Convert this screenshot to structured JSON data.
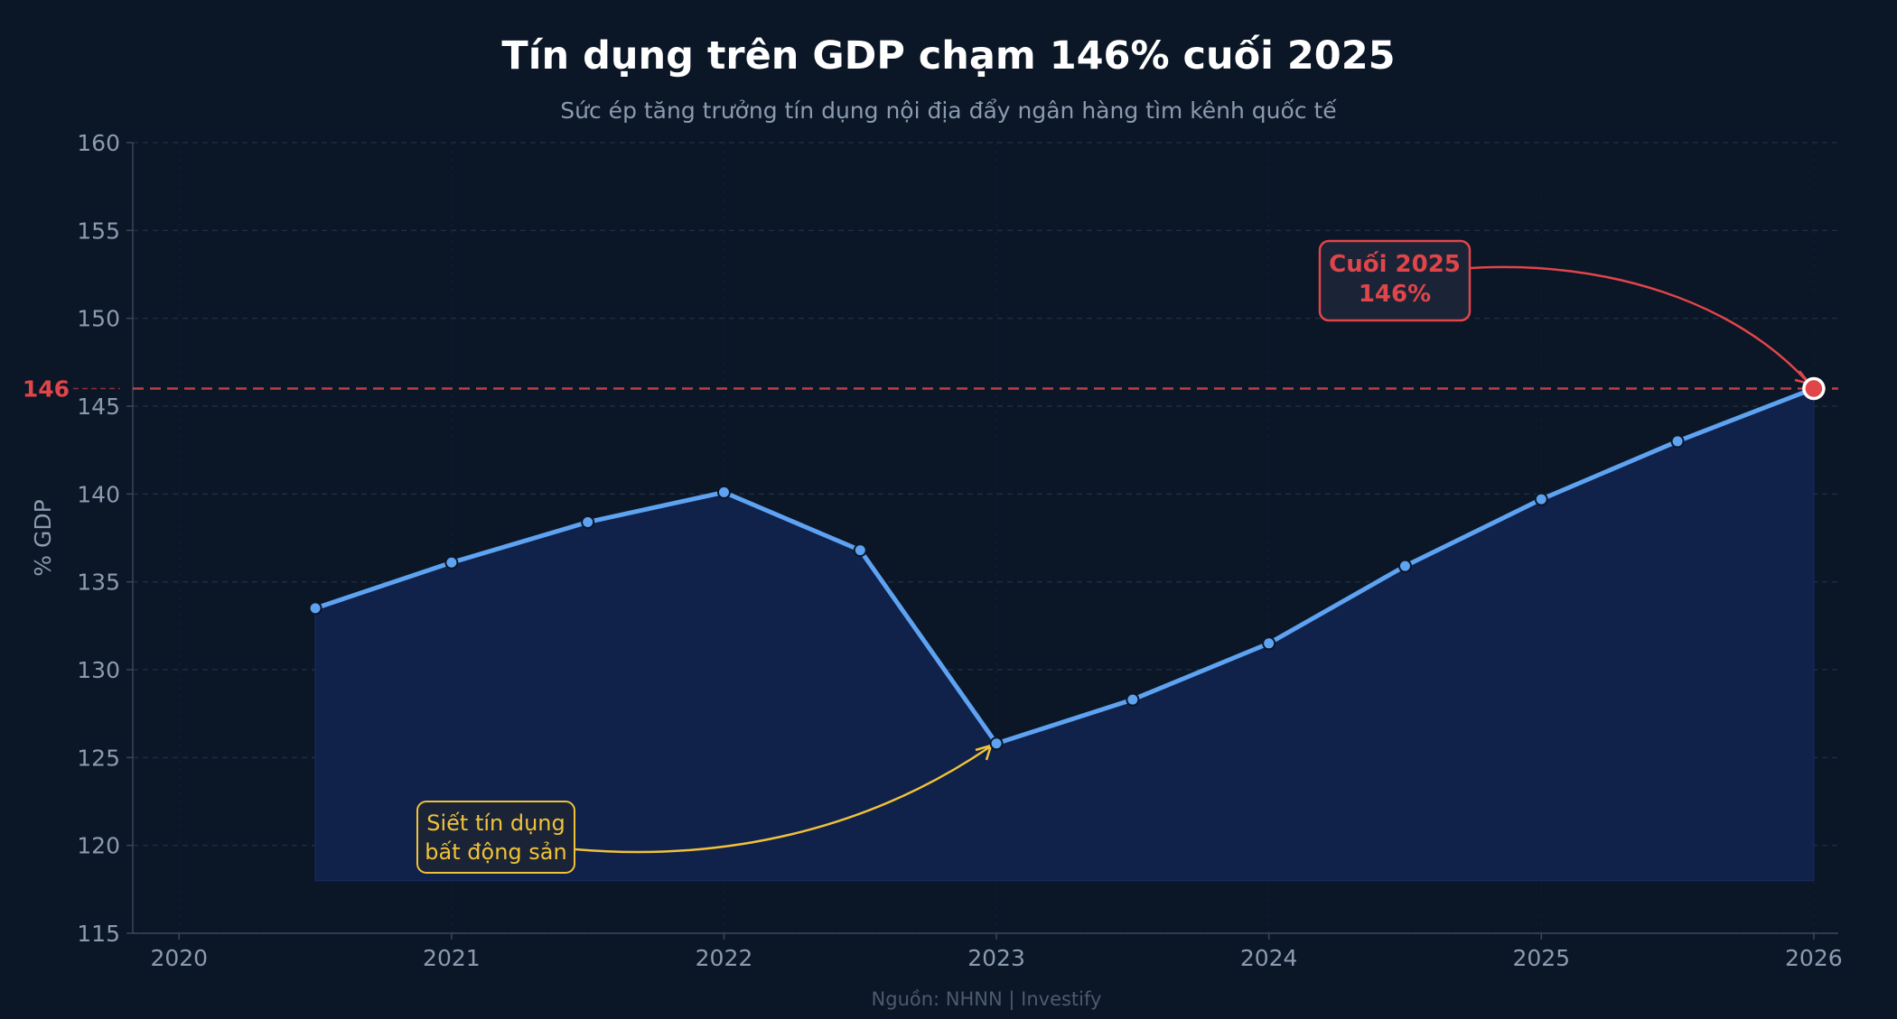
{
  "chart_data": {
    "type": "area",
    "title": "Tín dụng trên GDP chạm 146% cuối 2025",
    "subtitle": "Sức ép tăng trưởng tín dụng nội địa đẩy ngân hàng tìm kênh quốc tế",
    "xlabel": "",
    "ylabel": "% GDP",
    "source": "Nguồn: NHNN | Investify",
    "xlim": [
      2019.83,
      2026.09
    ],
    "ylim": [
      115,
      160
    ],
    "fill_baseline": 118,
    "grid": true,
    "x_ticks": [
      "2020",
      "2021",
      "2022",
      "2023",
      "2024",
      "2025",
      "2026"
    ],
    "y_ticks": [
      "115",
      "120",
      "125",
      "130",
      "135",
      "140",
      "145",
      "150",
      "155",
      "160"
    ],
    "series": [
      {
        "x": [
          2020.5,
          2021.0,
          2021.5,
          2022.0,
          2022.5,
          2023.0,
          2023.5,
          2024.0,
          2024.5,
          2025.0,
          2025.5,
          2026.0
        ],
        "y": [
          133.5,
          136.1,
          138.4,
          140.1,
          136.8,
          125.8,
          128.3,
          131.5,
          135.9,
          139.7,
          143.0,
          146.0
        ],
        "color": "#5ea3f2"
      }
    ],
    "reference_line": {
      "y": 146,
      "label": "146",
      "color": "#e0454a"
    },
    "annotations": [
      {
        "lines": [
          "Cuối 2025",
          "146%"
        ],
        "target": [
          2026.0,
          146.0
        ],
        "color": "#e0454a"
      },
      {
        "lines": [
          "Siết tín dụng",
          "bất động sản"
        ],
        "target": [
          2023.0,
          125.8
        ],
        "color": "#f0c23a"
      }
    ],
    "colors": {
      "background": "#0b1626",
      "fill": "#10214a",
      "line": "#5ea3f2",
      "highlight": "#e0454a",
      "note": "#f0c23a"
    }
  }
}
